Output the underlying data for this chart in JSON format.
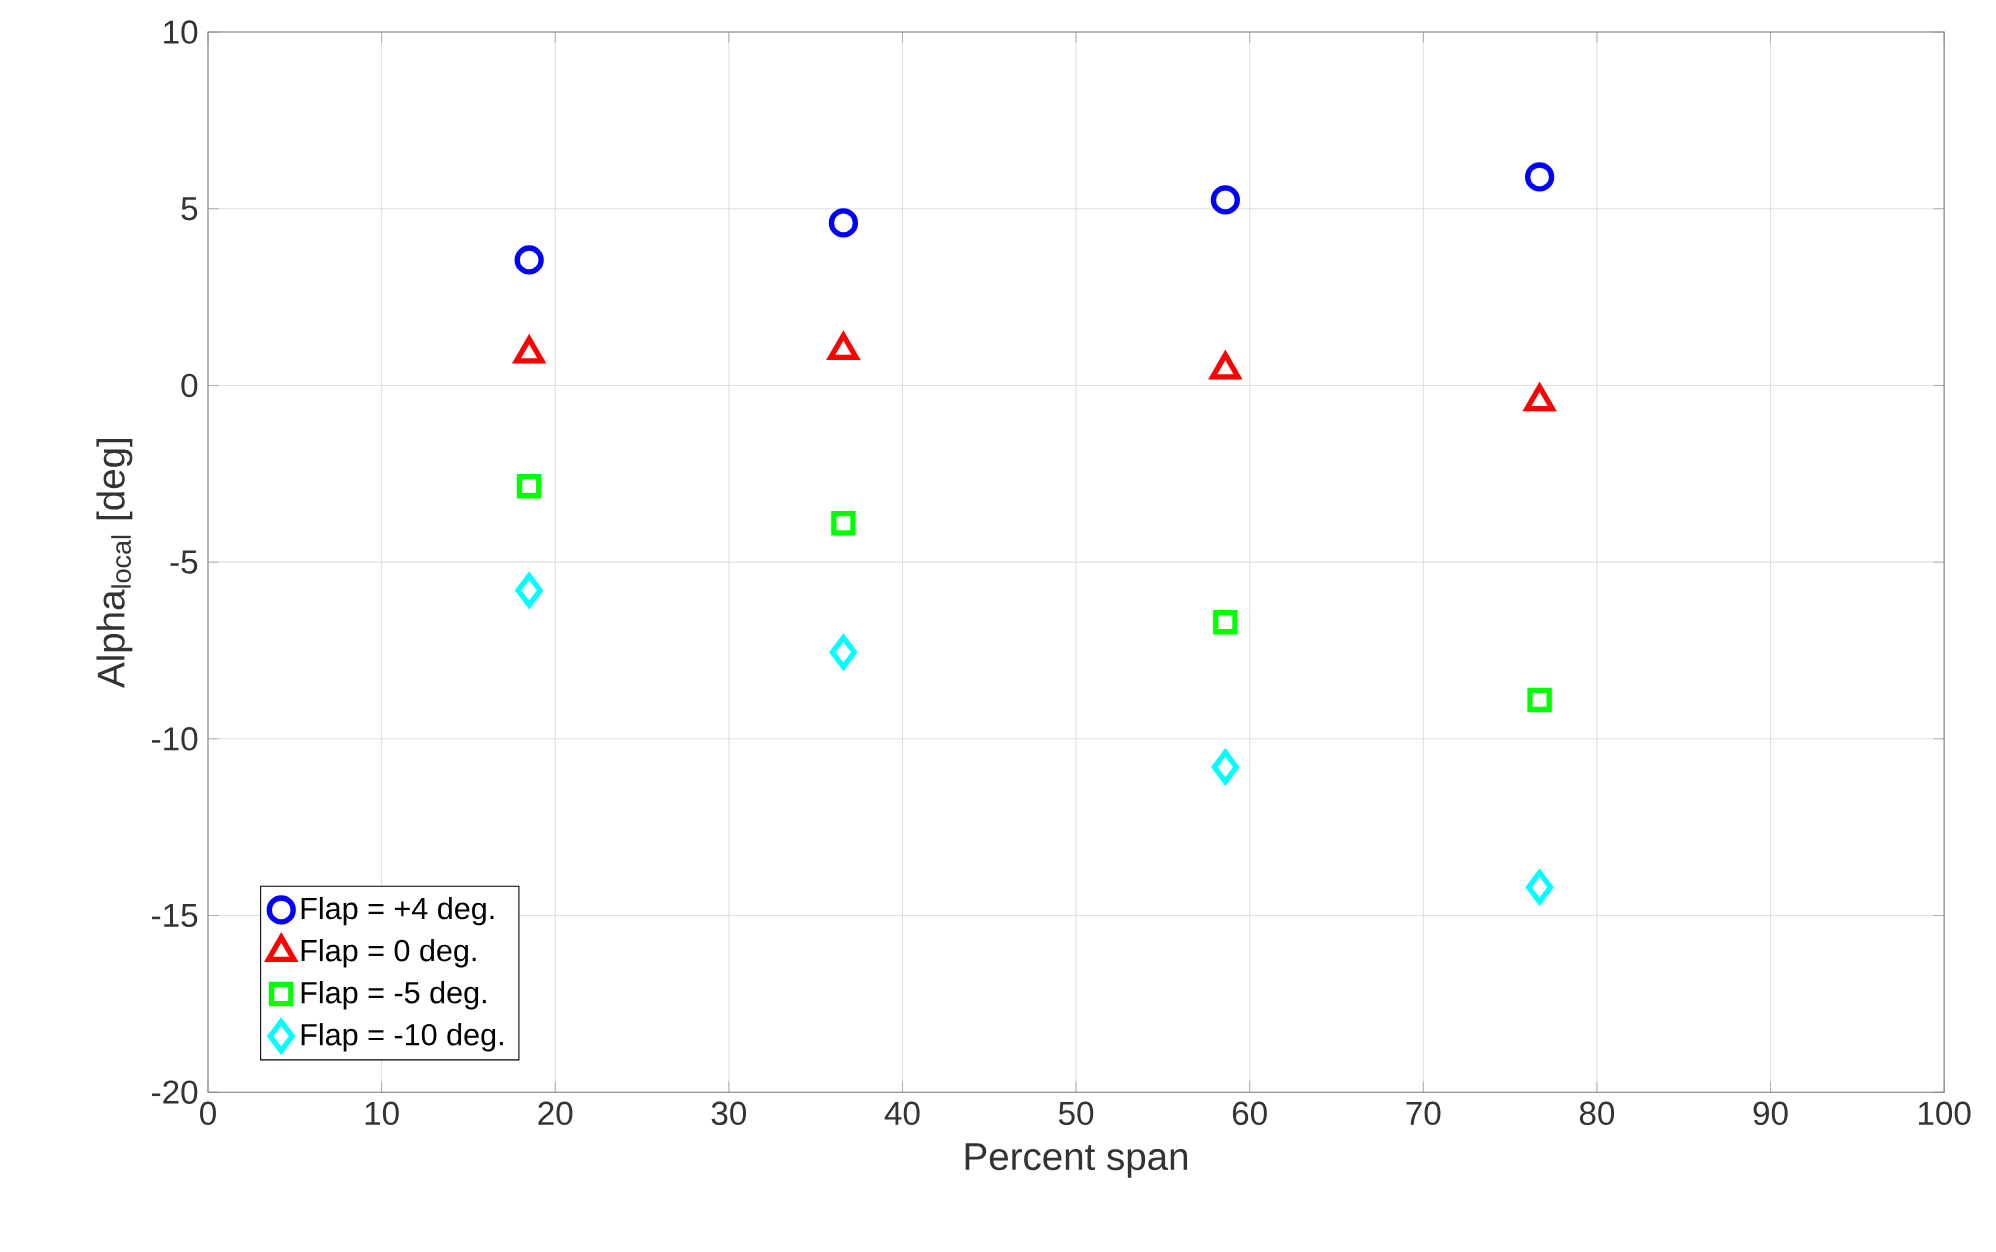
{
  "chart_data": {
    "type": "scatter",
    "xlabel": "Percent span",
    "ylabel": "Alpha$_{local}$ [deg]",
    "xlim": [
      0,
      100
    ],
    "xticks": [
      0,
      10,
      20,
      30,
      40,
      50,
      60,
      70,
      80,
      90,
      100
    ],
    "ylim": [
      -20,
      10
    ],
    "yticks": [
      -20,
      -15,
      -10,
      -5,
      0,
      5,
      10
    ],
    "grid": true,
    "legend": "bottom left",
    "x": [
      18.5,
      36.6,
      58.6,
      76.7
    ],
    "series": [
      {
        "name": "Flap = +4 deg.",
        "color": "#0000ff",
        "marker": "circle",
        "values": [
          3.55,
          4.6,
          5.25,
          5.9
        ]
      },
      {
        "name": "Flap = 0 deg.",
        "color": "#ff0000",
        "marker": "triangle",
        "values": [
          0.9,
          1.0,
          0.45,
          -0.45
        ]
      },
      {
        "name": "Flap = -5 deg.",
        "color": "#00ff00",
        "marker": "square",
        "values": [
          -2.85,
          -3.9,
          -6.7,
          -8.9
        ]
      },
      {
        "name": "Flap = -10 deg.",
        "color": "#00ffff",
        "marker": "diamond",
        "values": [
          -5.8,
          -7.55,
          -10.8,
          -14.2
        ]
      }
    ]
  }
}
